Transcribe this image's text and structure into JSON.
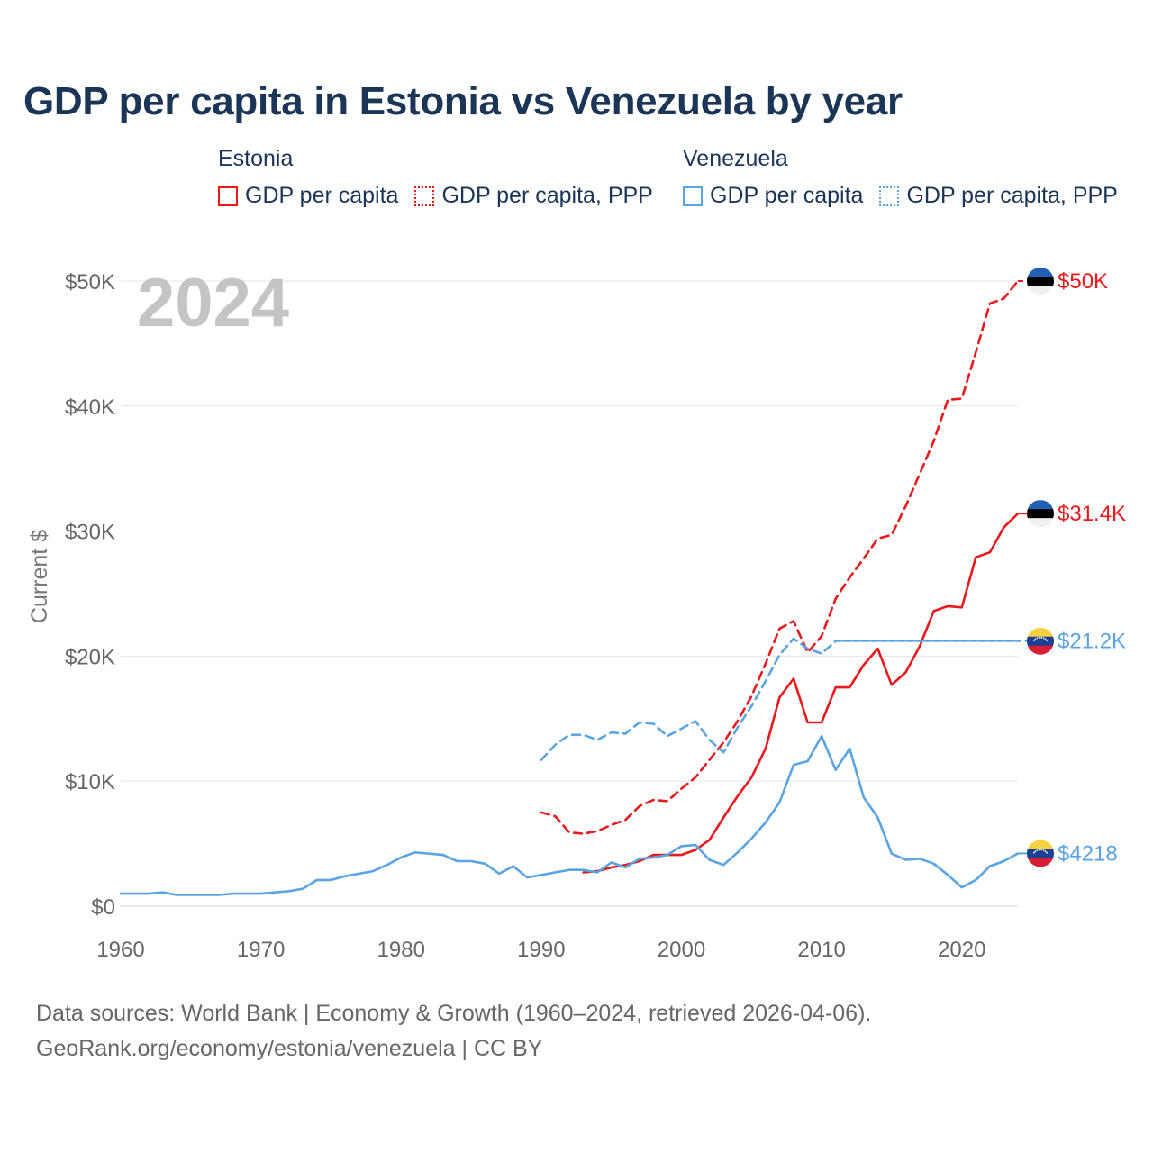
{
  "chart_data": {
    "type": "line",
    "title": "GDP per capita in Estonia vs Venezuela by year",
    "ylabel": "Current $",
    "xlabel": "",
    "year_label": "2024",
    "xlim": [
      1960,
      2024
    ],
    "ylim": [
      0,
      50000
    ],
    "x_ticks": [
      1960,
      1970,
      1980,
      1990,
      2000,
      2010,
      2020
    ],
    "y_ticks": [
      {
        "value": 0,
        "label": "$0"
      },
      {
        "value": 10000,
        "label": "$10K"
      },
      {
        "value": 20000,
        "label": "$20K"
      },
      {
        "value": 30000,
        "label": "$30K"
      },
      {
        "value": 40000,
        "label": "$40K"
      },
      {
        "value": 50000,
        "label": "$50K"
      }
    ],
    "legend": [
      {
        "country": "Estonia",
        "items": [
          {
            "label": "GDP per capita",
            "color": "#e8191c",
            "style": "solid"
          },
          {
            "label": "GDP per capita, PPP",
            "color": "#e8191c",
            "style": "dotted"
          }
        ]
      },
      {
        "country": "Venezuela",
        "items": [
          {
            "label": "GDP per capita",
            "color": "#5ba4e2",
            "style": "solid"
          },
          {
            "label": "GDP per capita, PPP",
            "color": "#5ba4e2",
            "style": "dotted"
          }
        ]
      }
    ],
    "series": [
      {
        "name": "Estonia GDP per capita, PPP",
        "country": "Estonia",
        "color": "#e8191c",
        "dash": true,
        "end_label": "$50K",
        "flag": "estonia",
        "points": [
          [
            1990,
            7500
          ],
          [
            1991,
            7200
          ],
          [
            1992,
            5900
          ],
          [
            1993,
            5800
          ],
          [
            1994,
            6000
          ],
          [
            1995,
            6500
          ],
          [
            1996,
            6900
          ],
          [
            1997,
            8000
          ],
          [
            1998,
            8500
          ],
          [
            1999,
            8400
          ],
          [
            2000,
            9400
          ],
          [
            2001,
            10300
          ],
          [
            2002,
            11700
          ],
          [
            2003,
            13100
          ],
          [
            2004,
            14800
          ],
          [
            2005,
            16800
          ],
          [
            2006,
            19400
          ],
          [
            2007,
            22200
          ],
          [
            2008,
            22800
          ],
          [
            2009,
            20300
          ],
          [
            2010,
            21600
          ],
          [
            2011,
            24600
          ],
          [
            2012,
            26300
          ],
          [
            2013,
            27800
          ],
          [
            2014,
            29400
          ],
          [
            2015,
            29700
          ],
          [
            2016,
            32000
          ],
          [
            2017,
            34600
          ],
          [
            2018,
            37200
          ],
          [
            2019,
            40500
          ],
          [
            2020,
            40600
          ],
          [
            2021,
            44300
          ],
          [
            2022,
            48200
          ],
          [
            2023,
            48600
          ],
          [
            2024,
            50000
          ]
        ]
      },
      {
        "name": "Estonia GDP per capita",
        "country": "Estonia",
        "color": "#e8191c",
        "dash": false,
        "end_label": "$31.4K",
        "flag": "estonia",
        "points": [
          [
            1993,
            2700
          ],
          [
            1994,
            2800
          ],
          [
            1995,
            3100
          ],
          [
            1996,
            3300
          ],
          [
            1997,
            3600
          ],
          [
            1998,
            4100
          ],
          [
            1999,
            4100
          ],
          [
            2000,
            4100
          ],
          [
            2001,
            4500
          ],
          [
            2002,
            5300
          ],
          [
            2003,
            7100
          ],
          [
            2004,
            8800
          ],
          [
            2005,
            10300
          ],
          [
            2006,
            12600
          ],
          [
            2007,
            16700
          ],
          [
            2008,
            18200
          ],
          [
            2009,
            14700
          ],
          [
            2010,
            14700
          ],
          [
            2011,
            17500
          ],
          [
            2012,
            17500
          ],
          [
            2013,
            19300
          ],
          [
            2014,
            20600
          ],
          [
            2015,
            17700
          ],
          [
            2016,
            18700
          ],
          [
            2017,
            20800
          ],
          [
            2018,
            23600
          ],
          [
            2019,
            24000
          ],
          [
            2020,
            23900
          ],
          [
            2021,
            27900
          ],
          [
            2022,
            28300
          ],
          [
            2023,
            30300
          ],
          [
            2024,
            31400
          ]
        ]
      },
      {
        "name": "Venezuela GDP per capita, PPP",
        "country": "Venezuela",
        "color": "#5ba4e2",
        "dash": true,
        "end_label": "$21.2K",
        "flag": "venezuela",
        "points": [
          [
            1990,
            11700
          ],
          [
            1991,
            12900
          ],
          [
            1992,
            13700
          ],
          [
            1993,
            13700
          ],
          [
            1994,
            13300
          ],
          [
            1995,
            13900
          ],
          [
            1996,
            13800
          ],
          [
            1997,
            14700
          ],
          [
            1998,
            14600
          ],
          [
            1999,
            13600
          ],
          [
            2000,
            14200
          ],
          [
            2001,
            14800
          ],
          [
            2002,
            13300
          ],
          [
            2003,
            12300
          ],
          [
            2004,
            14300
          ],
          [
            2005,
            16000
          ],
          [
            2006,
            18000
          ],
          [
            2007,
            20100
          ],
          [
            2008,
            21400
          ],
          [
            2009,
            20600
          ],
          [
            2010,
            20200
          ],
          [
            2011,
            21200
          ]
        ]
      },
      {
        "name": "Venezuela GDP per capita, PPP (carried)",
        "country": "Venezuela",
        "color": "#5ba4e2",
        "dash": false,
        "thin": true,
        "points": [
          [
            2011,
            21200
          ],
          [
            2024,
            21200
          ]
        ]
      },
      {
        "name": "Venezuela GDP per capita",
        "country": "Venezuela",
        "color": "#5ba4e2",
        "dash": false,
        "end_label": "$4218",
        "flag": "venezuela",
        "points": [
          [
            1960,
            1000
          ],
          [
            1961,
            1000
          ],
          [
            1962,
            1000
          ],
          [
            1963,
            1100
          ],
          [
            1964,
            900
          ],
          [
            1965,
            900
          ],
          [
            1966,
            900
          ],
          [
            1967,
            900
          ],
          [
            1968,
            1000
          ],
          [
            1969,
            1000
          ],
          [
            1970,
            1000
          ],
          [
            1971,
            1100
          ],
          [
            1972,
            1200
          ],
          [
            1973,
            1400
          ],
          [
            1974,
            2100
          ],
          [
            1975,
            2100
          ],
          [
            1976,
            2400
          ],
          [
            1977,
            2600
          ],
          [
            1978,
            2800
          ],
          [
            1979,
            3300
          ],
          [
            1980,
            3900
          ],
          [
            1981,
            4300
          ],
          [
            1982,
            4200
          ],
          [
            1983,
            4100
          ],
          [
            1984,
            3600
          ],
          [
            1985,
            3600
          ],
          [
            1986,
            3400
          ],
          [
            1987,
            2600
          ],
          [
            1988,
            3200
          ],
          [
            1989,
            2300
          ],
          [
            1990,
            2500
          ],
          [
            1991,
            2700
          ],
          [
            1992,
            2900
          ],
          [
            1993,
            2900
          ],
          [
            1994,
            2700
          ],
          [
            1995,
            3500
          ],
          [
            1996,
            3100
          ],
          [
            1997,
            3800
          ],
          [
            1998,
            3900
          ],
          [
            1999,
            4100
          ],
          [
            2000,
            4800
          ],
          [
            2001,
            4900
          ],
          [
            2002,
            3700
          ],
          [
            2003,
            3300
          ],
          [
            2004,
            4300
          ],
          [
            2005,
            5400
          ],
          [
            2006,
            6700
          ],
          [
            2007,
            8300
          ],
          [
            2008,
            11300
          ],
          [
            2009,
            11600
          ],
          [
            2010,
            13600
          ],
          [
            2011,
            10900
          ],
          [
            2012,
            12600
          ],
          [
            2013,
            8700
          ],
          [
            2014,
            7100
          ],
          [
            2015,
            4200
          ],
          [
            2016,
            3700
          ],
          [
            2017,
            3800
          ],
          [
            2018,
            3400
          ],
          [
            2019,
            2500
          ],
          [
            2020,
            1500
          ],
          [
            2021,
            2100
          ],
          [
            2022,
            3200
          ],
          [
            2023,
            3600
          ],
          [
            2024,
            4218
          ]
        ]
      }
    ]
  },
  "footer": {
    "line1": "Data sources: World Bank | Economy & Growth (1960–2024, retrieved 2026-04-06).",
    "line2": "GeoRank.org/economy/estonia/venezuela | CC BY"
  }
}
